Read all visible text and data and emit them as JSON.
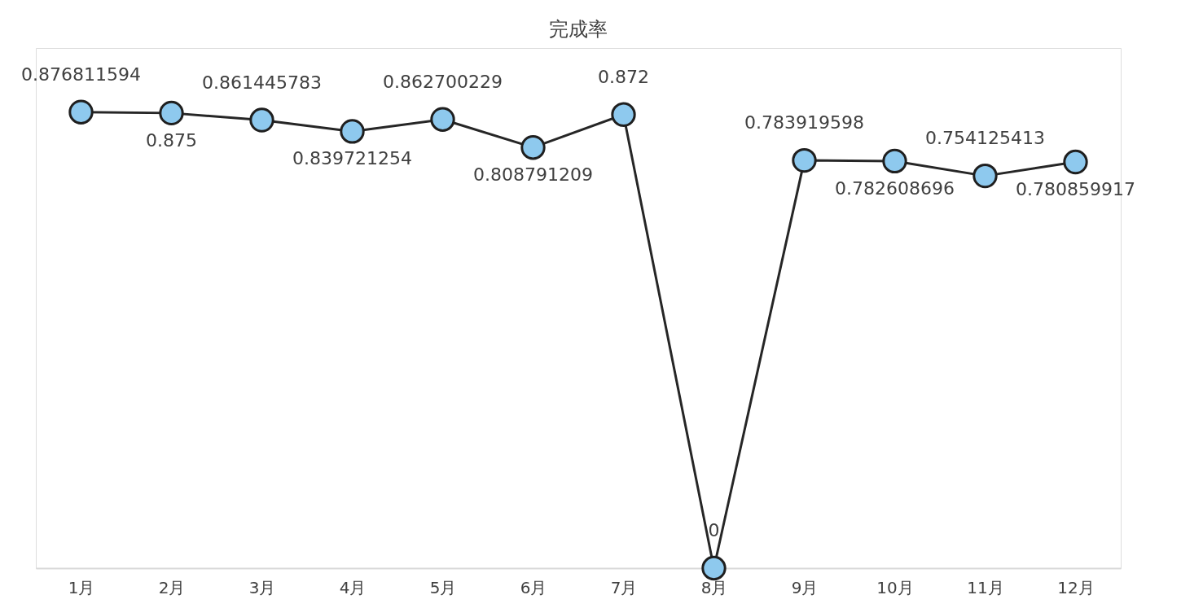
{
  "chart_data": {
    "type": "line",
    "title": "完成率",
    "categories": [
      "1月",
      "2月",
      "3月",
      "4月",
      "5月",
      "6月",
      "7月",
      "8月",
      "9月",
      "10月",
      "11月",
      "12月"
    ],
    "series": [
      {
        "color": "#262626",
        "values": [
          0.876811594,
          0.875,
          0.861445783,
          0.839721254,
          0.862700229,
          0.808791209,
          0.872,
          0,
          0.783919598,
          0.782608696,
          0.754125413,
          0.780859917
        ]
      }
    ],
    "ylim": [
      0,
      1
    ],
    "tick_labels": "x",
    "data_labels": true,
    "marker": "circle",
    "line_style": "solid"
  }
}
